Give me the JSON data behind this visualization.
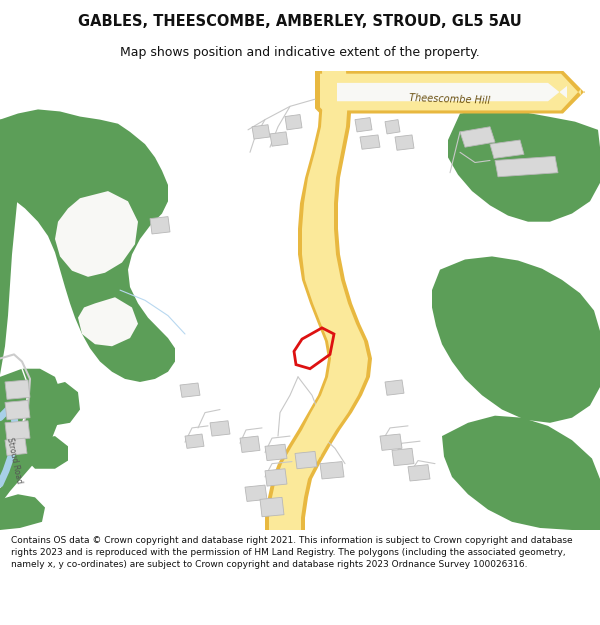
{
  "title": "GABLES, THEESCOMBE, AMBERLEY, STROUD, GL5 5AU",
  "subtitle": "Map shows position and indicative extent of the property.",
  "footer": "Contains OS data © Crown copyright and database right 2021. This information is subject to Crown copyright and database rights 2023 and is reproduced with the permission of HM Land Registry. The polygons (including the associated geometry, namely x, y co-ordinates) are subject to Crown copyright and database rights 2023 Ordnance Survey 100026316.",
  "bg_color": "#ffffff",
  "map_bg": "#f8f8f5",
  "road_main_fill": "#fbe99a",
  "road_main_border": "#e8b840",
  "green_color": "#5c9e58",
  "building_color": "#d8d8d8",
  "building_border": "#b8b8b8",
  "plot_color": "#dd1111",
  "water_color": "#a8d0e8",
  "road_label_color": "#6a5010",
  "title_fontsize": 10.5,
  "subtitle_fontsize": 9.0,
  "footer_fontsize": 6.5
}
